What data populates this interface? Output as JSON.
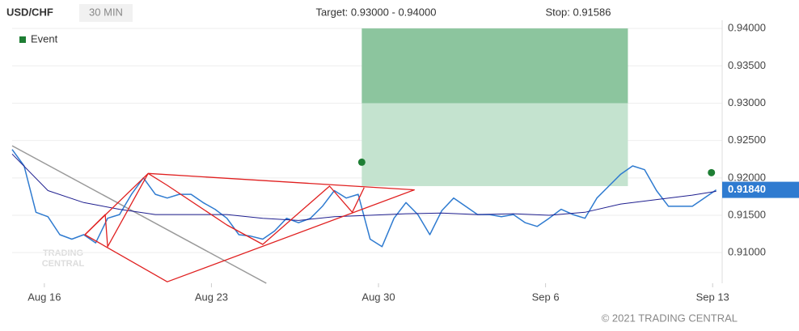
{
  "chart_data": {
    "type": "line",
    "symbol": "USD/CHF",
    "interval": "30 MIN",
    "target_text": "Target: 0.93000 - 0.94000",
    "stop_text": "Stop: 0.91586",
    "footer": "© 2021 TRADING CENTRAL",
    "watermark": [
      "TRADING",
      "CENTRAL"
    ],
    "legend": {
      "name": "Event",
      "color": "#1e7e34",
      "position": "top-left"
    },
    "grid": true,
    "xlim": [
      0,
      59.5
    ],
    "xticks": [
      {
        "value": 2.7,
        "label": "Aug 16"
      },
      {
        "value": 16.7,
        "label": "Aug 23"
      },
      {
        "value": 30.7,
        "label": "Aug 30"
      },
      {
        "value": 44.7,
        "label": "Sep 6"
      },
      {
        "value": 58.7,
        "label": "Sep 13"
      }
    ],
    "ylim": [
      0.9059,
      0.9411
    ],
    "yticks": [
      {
        "value": 0.91,
        "label": "0.91000"
      },
      {
        "value": 0.915,
        "label": "0.91500"
      },
      {
        "value": 0.92,
        "label": "0.92000"
      },
      {
        "value": 0.925,
        "label": "0.92500"
      },
      {
        "value": 0.93,
        "label": "0.93000"
      },
      {
        "value": 0.935,
        "label": "0.93500"
      },
      {
        "value": 0.94,
        "label": "0.94000"
      }
    ],
    "series": [
      {
        "color": "#2f7bd0",
        "values": [
          0.9238,
          0.9216,
          0.9154,
          0.9148,
          0.9124,
          0.9118,
          0.9124,
          0.9113,
          0.9146,
          0.9151,
          0.9178,
          0.92,
          0.9178,
          0.9173,
          0.9178,
          0.9178,
          0.9167,
          0.9158,
          0.9146,
          0.9124,
          0.9122,
          0.9118,
          0.9129,
          0.9146,
          0.914,
          0.9146,
          0.9162,
          0.9183,
          0.9173,
          0.9178,
          0.9118,
          0.9108,
          0.9146,
          0.9167,
          0.9151,
          0.9124,
          0.9156,
          0.9173,
          0.9162,
          0.9151,
          0.9151,
          0.9148,
          0.9151,
          0.914,
          0.9135,
          0.9146,
          0.9158,
          0.9151,
          0.9146,
          0.9173,
          0.9189,
          0.9205,
          0.9216,
          0.9211,
          0.9183,
          0.9162,
          0.9162,
          0.9162,
          0.9173,
          0.9184
        ]
      },
      {
        "color": "#1f1f8f",
        "x": [
          0,
          3,
          6,
          9,
          12,
          15,
          18,
          21,
          24,
          27,
          30,
          33,
          36,
          39,
          42,
          45,
          48,
          51,
          54,
          57,
          59
        ],
        "values": [
          0.9232,
          0.9183,
          0.9167,
          0.9158,
          0.9151,
          0.9151,
          0.9151,
          0.9146,
          0.9143,
          0.9148,
          0.915,
          0.9152,
          0.9153,
          0.9151,
          0.9152,
          0.915,
          0.9154,
          0.9165,
          0.9171,
          0.9177,
          0.9182
        ]
      }
    ],
    "last_price": {
      "value": 0.9184,
      "label": "0.91840",
      "color": "#2f7bd0"
    },
    "target_zone": {
      "x": [
        29.3,
        51.6
      ],
      "bottom": 0.9189,
      "target_low": 0.93,
      "target_high": 0.94,
      "color_low": "#c4e3cf",
      "color_high": "#8cc59e"
    },
    "events": {
      "x": [
        29.3,
        58.6
      ],
      "values": [
        0.9221,
        0.9207
      ],
      "color": "#1e7e34"
    },
    "trend_line": {
      "color": "#999999",
      "x": [
        0,
        21.3
      ],
      "values": [
        0.9243,
        0.9059
      ]
    },
    "pattern_lines": [
      {
        "color": "#e02020",
        "x": [
          11.4,
          33.7,
          13.0,
          6.1,
          11.4
        ],
        "values": [
          0.9206,
          0.9184,
          0.9061,
          0.9124,
          0.9206
        ]
      },
      {
        "color": "#e02020",
        "x": [
          6.1,
          7.8,
          8.0,
          11.4,
          13.0,
          18.0,
          21.0,
          26.6,
          28.5,
          29.5
        ],
        "values": [
          0.9124,
          0.9151,
          0.9108,
          0.9206,
          0.919,
          0.9137,
          0.9111,
          0.9189,
          0.9154,
          0.9187
        ]
      }
    ]
  }
}
